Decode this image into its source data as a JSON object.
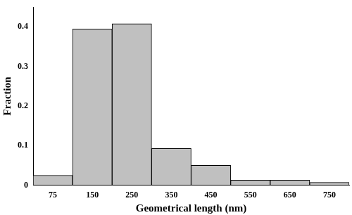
{
  "chart_data": {
    "type": "bar",
    "x_label": "Geometrical length (nm)",
    "y_label": "Fraction",
    "categories": [
      "75",
      "150",
      "250",
      "350",
      "450",
      "550",
      "650",
      "750"
    ],
    "values": [
      0.025,
      0.395,
      0.408,
      0.093,
      0.05,
      0.013,
      0.013,
      0.007
    ],
    "color": "#c0c0c0",
    "ylim": [
      0,
      0.45
    ],
    "yticks": [
      0,
      0.1,
      0.2,
      0.3,
      0.4
    ],
    "grid": false
  }
}
